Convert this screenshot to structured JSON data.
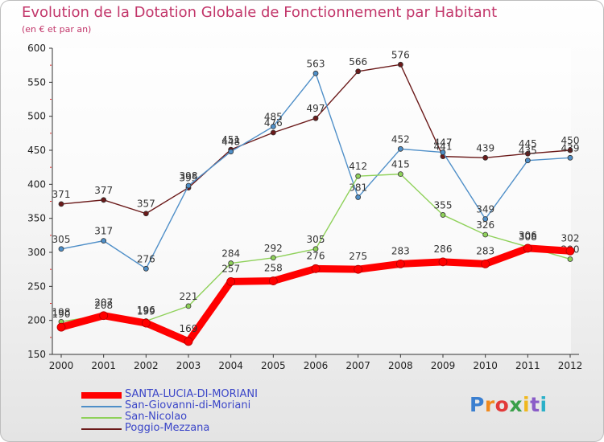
{
  "title": "Evolution de la Dotation Globale de Fonctionnement par Habitant",
  "subtitle": "(en € et par an)",
  "logo_text": "Proxiti",
  "chart_data": {
    "type": "line",
    "title": "Evolution de la Dotation Globale de Fonctionnement par Habitant",
    "subtitle": "(en € et par an)",
    "x": [
      "2000",
      "2001",
      "2002",
      "2003",
      "2004",
      "2005",
      "2006",
      "2007",
      "2008",
      "2009",
      "2010",
      "2011",
      "2012"
    ],
    "ylim": [
      150,
      600
    ],
    "yticks": [
      150,
      200,
      250,
      300,
      350,
      400,
      450,
      500,
      550,
      600
    ],
    "grid": false,
    "legend_position": "bottom-left",
    "series": [
      {
        "name": "SANTA-LUCIA-DI-MORIANI",
        "color": "#ff0000",
        "values": [
          190,
          207,
          196,
          169,
          257,
          258,
          276,
          275,
          283,
          286,
          283,
          306,
          302
        ]
      },
      {
        "name": "San-Giovanni-di-Moriani",
        "color": "#4f8fc8",
        "values": [
          305,
          317,
          276,
          398,
          448,
          485,
          563,
          381,
          452,
          447,
          349,
          435,
          439
        ]
      },
      {
        "name": "San-Nicolao",
        "color": "#8fd15a",
        "values": [
          198,
          208,
          199,
          221,
          284,
          292,
          305,
          412,
          415,
          355,
          326,
          308,
          290
        ]
      },
      {
        "name": "Poggio-Mezzana",
        "color": "#6b1a1a",
        "values": [
          371,
          377,
          357,
          395,
          451,
          476,
          497,
          566,
          576,
          441,
          439,
          445,
          450
        ]
      }
    ]
  }
}
